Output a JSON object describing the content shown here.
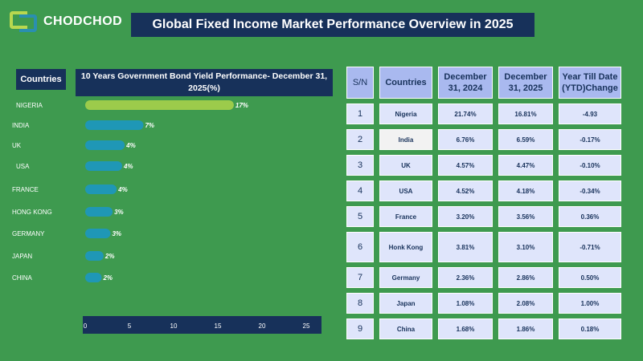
{
  "brand": {
    "name": "CHODCHOD",
    "tagline": ""
  },
  "title": "Global Fixed Income Market Performance Overview in 2025",
  "countries_header": "Countries",
  "chart_data": {
    "type": "bar",
    "orientation": "horizontal",
    "title": "10 Years Government Bond Yield Performance- December 31, 2025(%)",
    "categories": [
      "NIGERIA",
      "INDIA",
      "UK",
      "USA",
      "FRANCE",
      "HONG KONG",
      "GERMANY",
      "JAPAN",
      "CHINA"
    ],
    "values": [
      16.81,
      6.59,
      4.47,
      4.18,
      3.56,
      3.1,
      2.86,
      2.08,
      1.86
    ],
    "data_labels": [
      "17%",
      "7%",
      "4%",
      "4%",
      "4%",
      "3%",
      "3%",
      "2%",
      "2%"
    ],
    "xlim": [
      0,
      25
    ],
    "xticks": [
      "0",
      "5",
      "10",
      "15",
      "20",
      "25"
    ],
    "colors": {
      "highlight": "#9ccb4b",
      "default": "#1f97b6"
    },
    "grid": false
  },
  "table": {
    "headers": [
      "S/N",
      "Countries",
      "December 31, 2024",
      "December 31, 2025",
      "Year Till Date (YTD)Change"
    ],
    "rows": [
      {
        "sn": "1",
        "country": "Nigeria",
        "dec2024": "21.74%",
        "dec2025": "16.81%",
        "ytd": "-4.93"
      },
      {
        "sn": "2",
        "country": "India",
        "dec2024": "6.76%",
        "dec2025": "6.59%",
        "ytd": "-0.17%"
      },
      {
        "sn": "3",
        "country": "UK",
        "dec2024": "4.57%",
        "dec2025": "4.47%",
        "ytd": "-0.10%"
      },
      {
        "sn": "4",
        "country": "USA",
        "dec2024": "4.52%",
        "dec2025": "4.18%",
        "ytd": "-0.34%"
      },
      {
        "sn": "5",
        "country": "France",
        "dec2024": "3.20%",
        "dec2025": "3.56%",
        "ytd": "0.36%"
      },
      {
        "sn": "6",
        "country": "Honk Kong",
        "dec2024": "3.81%",
        "dec2025": "3.10%",
        "ytd": "-0.71%"
      },
      {
        "sn": "7",
        "country": "Germany",
        "dec2024": "2.36%",
        "dec2025": "2.86%",
        "ytd": "0.50%"
      },
      {
        "sn": "8",
        "country": "Japan",
        "dec2024": "1.08%",
        "dec2025": "2.08%",
        "ytd": "1.00%"
      },
      {
        "sn": "9",
        "country": "China",
        "dec2024": "1.68%",
        "dec2025": "1.86%",
        "ytd": "0.18%"
      }
    ]
  }
}
